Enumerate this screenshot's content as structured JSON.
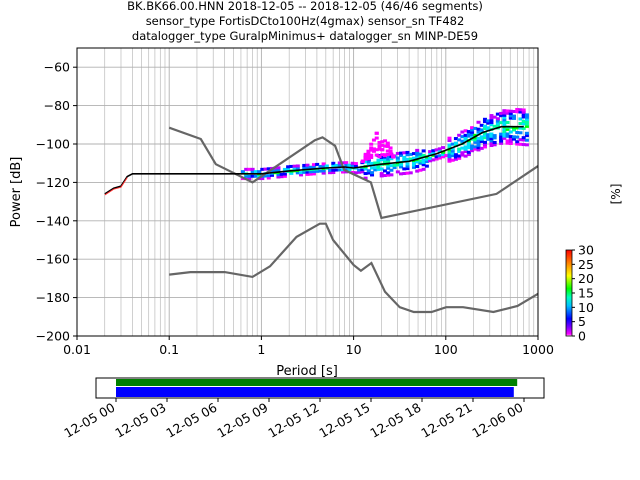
{
  "title_lines": [
    "BK.BK66.00.HNN   2018-12-05 -- 2018-12-05  (46/46 segments)",
    "sensor_type FortisDCto100Hz(4gmax) sensor_sn TF482",
    "datalogger_type GuralpMinimus+ datalogger_sn MINP-DE59"
  ],
  "chart_data": {
    "type": "heatmap",
    "xlabel": "Period [s]",
    "ylabel": "Power [dB]",
    "xscale": "log",
    "xlim": [
      0.01,
      1000
    ],
    "ylim": [
      -200,
      -50
    ],
    "x_ticks": [
      {
        "value": 0.01,
        "label": "0.01"
      },
      {
        "value": 0.1,
        "label": "0.1"
      },
      {
        "value": 1,
        "label": "1"
      },
      {
        "value": 10,
        "label": "10"
      },
      {
        "value": 100,
        "label": "100"
      },
      {
        "value": 1000,
        "label": "1000"
      }
    ],
    "y_ticks": [
      -60,
      -80,
      -100,
      -120,
      -140,
      -160,
      -180,
      -200
    ],
    "grid": true,
    "noise_models": [
      {
        "x": [
          0.1,
          0.22,
          0.32,
          0.8,
          3.8,
          4.6,
          6.3,
          7.9,
          15.4,
          20,
          354.8,
          1000
        ],
        "y": [
          -91.5,
          -97.4,
          -110.5,
          -120,
          -98,
          -96.5,
          -101,
          -113.5,
          -120,
          -138.5,
          -126,
          -111.5
        ]
      },
      {
        "x": [
          0.1,
          0.17,
          0.4,
          0.8,
          1.24,
          2.4,
          4.3,
          5,
          6,
          10,
          12,
          15.6,
          21.9,
          31.6,
          45,
          70,
          101,
          154,
          328,
          600,
          1000
        ],
        "y": [
          -168,
          -166.7,
          -166.7,
          -169.2,
          -163.7,
          -148.4,
          -141.5,
          -141.5,
          -150,
          -163,
          -166,
          -162,
          -177,
          -185,
          -187.5,
          -187.5,
          -185,
          -185,
          -187.5,
          -184.4,
          -178
        ]
      }
    ],
    "mode_line": {
      "x": [
        0.02,
        0.025,
        0.03,
        0.035,
        0.04,
        0.1,
        0.5,
        1,
        2,
        5,
        8,
        10,
        20,
        40,
        80,
        150,
        250,
        400,
        700
      ],
      "y": [
        -126,
        -123,
        -122,
        -117,
        -115.5,
        -115.5,
        -115.5,
        -115.5,
        -114,
        -112.5,
        -112,
        -112.5,
        -110.5,
        -109,
        -105,
        -100,
        -94,
        -91,
        -91
      ]
    },
    "colorbar": {
      "label": "[%]",
      "range": [
        0,
        30
      ],
      "ticks": [
        0,
        5,
        10,
        15,
        20,
        25,
        30
      ]
    },
    "timeline": {
      "tick_labels": [
        "12-05 00",
        "12-05 03",
        "12-05 06",
        "12-05 09",
        "12-05 12",
        "12-05 15",
        "12-05 18",
        "12-05 21",
        "12-06 00"
      ],
      "start_hour": 0,
      "end_hour": 24,
      "data_bar": {
        "start_hour": 0,
        "end_hour": 23.6,
        "color": "#008000"
      },
      "psd_bar": {
        "start_hour": 0,
        "end_hour": 23.4,
        "color": "#0000ff"
      }
    }
  }
}
